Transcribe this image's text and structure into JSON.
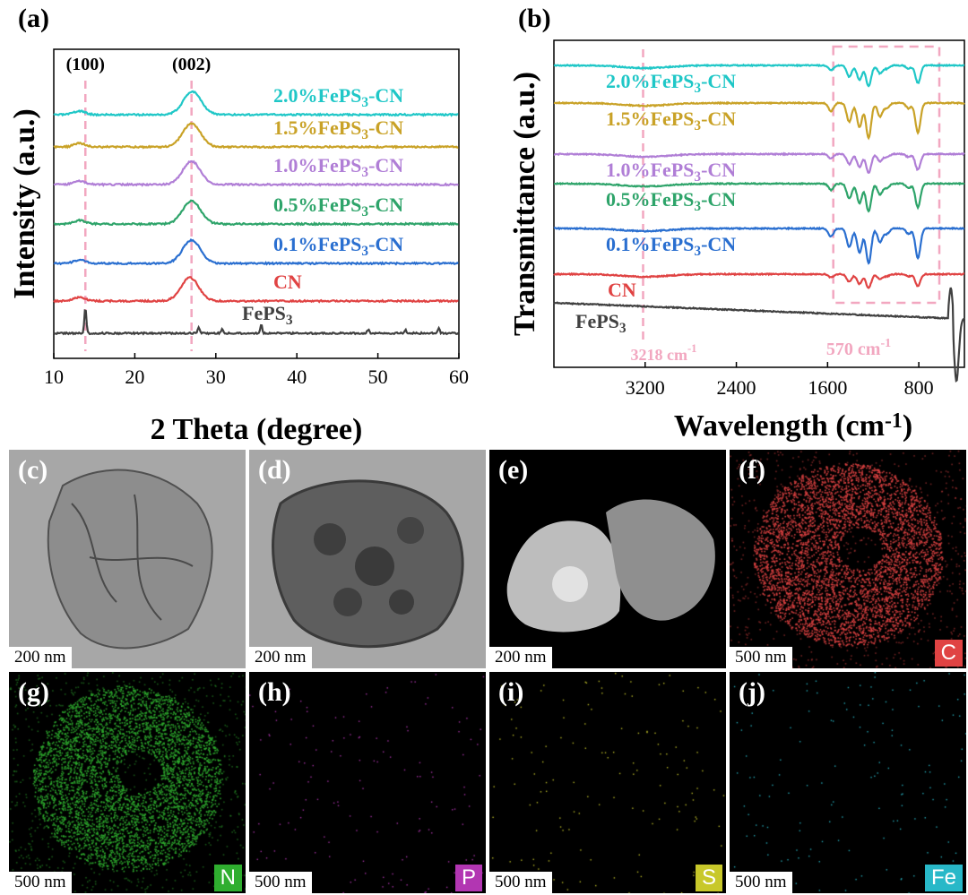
{
  "chart_data": [
    {
      "type": "line",
      "panel_label": "(a)",
      "xlabel": "2 Theta (degree)",
      "ylabel": "Intensity (a.u.)",
      "xlim": [
        10,
        60
      ],
      "xticks": [
        "10",
        "20",
        "30",
        "40",
        "50",
        "60"
      ],
      "annotations": [
        {
          "text": "(100)",
          "x": 13.9
        },
        {
          "text": "(002)",
          "x": 27.0
        }
      ],
      "series": [
        {
          "name": "2.0%FePS3-CN",
          "label_main": "2.0%FePS",
          "label_sub": "3",
          "label_tail": "-CN",
          "color": "#1fc7c7",
          "peak_x": 27.1
        },
        {
          "name": "1.5%FePS3-CN",
          "label_main": "1.5%FePS",
          "label_sub": "3",
          "label_tail": "-CN",
          "color": "#c9a227",
          "peak_x": 27.0
        },
        {
          "name": "1.0%FePS3-CN",
          "label_main": "1.0%FePS",
          "label_sub": "3",
          "label_tail": "-CN",
          "color": "#b07ed6",
          "peak_x": 27.0
        },
        {
          "name": "0.5%FePS3-CN",
          "label_main": "0.5%FePS",
          "label_sub": "3",
          "label_tail": "-CN",
          "color": "#2ea46a",
          "peak_x": 27.0
        },
        {
          "name": "0.1%FePS3-CN",
          "label_main": "0.1%FePS",
          "label_sub": "3",
          "label_tail": "-CN",
          "color": "#2a6fd0",
          "peak_x": 27.0
        },
        {
          "name": "CN",
          "label_main": "CN",
          "label_sub": "",
          "label_tail": "",
          "color": "#e04343",
          "peak_x": 26.8
        },
        {
          "name": "FePS3",
          "label_main": "FePS",
          "label_sub": "3",
          "label_tail": "",
          "color": "#404040",
          "peaks_x": [
            13.9,
            27.9,
            30.8,
            35.6,
            48.8,
            53.4,
            57.5
          ]
        }
      ]
    },
    {
      "type": "line",
      "panel_label": "(b)",
      "xlabel_main": "Wavelength (cm",
      "xlabel_sup": "-1",
      "xlabel_tail": ")",
      "ylabel": "Transmittance (a.u.)",
      "xlim": [
        4000,
        400
      ],
      "xticks": [
        "3200",
        "2400",
        "1600",
        "800"
      ],
      "annotations": [
        {
          "text_main": "3218 cm",
          "text_sup": "-1",
          "x": 3218
        },
        {
          "text_main": "570 cm",
          "text_sup": "-1",
          "x": 570
        }
      ],
      "highlight_region": [
        1550,
        620
      ],
      "series": [
        {
          "name": "2.0%FePS3-CN",
          "label_main": "2.0%FePS",
          "label_sub": "3",
          "label_tail": "-CN",
          "color": "#1fc7c7"
        },
        {
          "name": "1.5%FePS3-CN",
          "label_main": "1.5%FePS",
          "label_sub": "3",
          "label_tail": "-CN",
          "color": "#c9a227"
        },
        {
          "name": "1.0%FePS3-CN",
          "label_main": "1.0%FePS",
          "label_sub": "3",
          "label_tail": "-CN",
          "color": "#b07ed6"
        },
        {
          "name": "0.5%FePS3-CN",
          "label_main": "0.5%FePS",
          "label_sub": "3",
          "label_tail": "-CN",
          "color": "#2ea46a"
        },
        {
          "name": "0.1%FePS3-CN",
          "label_main": "0.1%FePS",
          "label_sub": "3",
          "label_tail": "-CN",
          "color": "#2a6fd0"
        },
        {
          "name": "CN",
          "label_main": "CN",
          "label_sub": "",
          "label_tail": "",
          "color": "#e04343"
        },
        {
          "name": "FePS3",
          "label_main": "FePS",
          "label_sub": "3",
          "label_tail": "",
          "color": "#404040"
        }
      ]
    }
  ],
  "micrographs": [
    {
      "label": "(c)",
      "scale": "200 nm",
      "kind": "TEM"
    },
    {
      "label": "(d)",
      "scale": "200 nm",
      "kind": "TEM"
    },
    {
      "label": "(e)",
      "scale": "200 nm",
      "kind": "HAADF"
    },
    {
      "label": "(f)",
      "scale": "500 nm",
      "element": "C",
      "element_color": "#e04343"
    },
    {
      "label": "(g)",
      "scale": "500 nm",
      "element": "N",
      "element_color": "#2fae2f"
    },
    {
      "label": "(h)",
      "scale": "500 nm",
      "element": "P",
      "element_color": "#b236b2"
    },
    {
      "label": "(i)",
      "scale": "500 nm",
      "element": "S",
      "element_color": "#c8c82a"
    },
    {
      "label": "(j)",
      "scale": "500 nm",
      "element": "Fe",
      "element_color": "#28b8c8"
    }
  ]
}
